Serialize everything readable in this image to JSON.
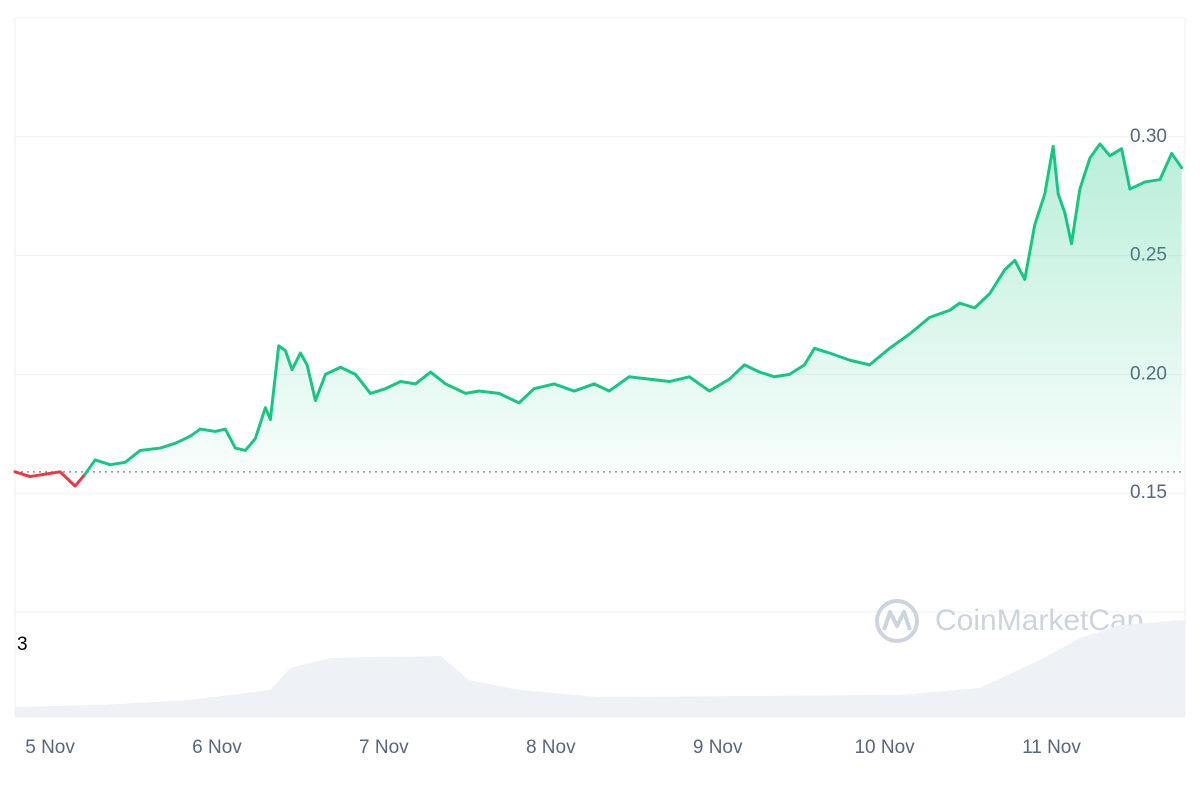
{
  "chart_data": {
    "type": "line",
    "x": [
      4.79,
      4.88,
      4.97,
      5.06,
      5.15,
      5.21,
      5.27,
      5.36,
      5.45,
      5.54,
      5.66,
      5.75,
      5.84,
      5.9,
      5.99,
      6.05,
      6.11,
      6.17,
      6.23,
      6.29,
      6.32,
      6.37,
      6.41,
      6.45,
      6.5,
      6.54,
      6.59,
      6.65,
      6.74,
      6.83,
      6.92,
      7.01,
      7.1,
      7.19,
      7.28,
      7.37,
      7.49,
      7.57,
      7.69,
      7.81,
      7.9,
      8.02,
      8.14,
      8.26,
      8.35,
      8.47,
      8.59,
      8.71,
      8.83,
      8.95,
      9.07,
      9.16,
      9.25,
      9.34,
      9.43,
      9.52,
      9.58,
      9.67,
      9.79,
      9.91,
      10.03,
      10.15,
      10.27,
      10.39,
      10.45,
      10.54,
      10.63,
      10.72,
      10.78,
      10.84,
      10.9,
      10.96,
      11.01,
      11.04,
      11.08,
      11.12,
      11.17,
      11.23,
      11.29,
      11.35,
      11.42,
      11.47,
      11.56,
      11.65,
      11.72,
      11.78
    ],
    "series": [
      {
        "color": "#16c784",
        "down_color": "#ea3943",
        "values": [
          0.159,
          0.157,
          0.158,
          0.159,
          0.153,
          0.158,
          0.164,
          0.162,
          0.163,
          0.168,
          0.169,
          0.171,
          0.174,
          0.177,
          0.176,
          0.177,
          0.169,
          0.168,
          0.173,
          0.186,
          0.181,
          0.212,
          0.21,
          0.202,
          0.209,
          0.204,
          0.189,
          0.2,
          0.203,
          0.2,
          0.192,
          0.194,
          0.197,
          0.196,
          0.201,
          0.196,
          0.192,
          0.193,
          0.192,
          0.188,
          0.194,
          0.196,
          0.193,
          0.196,
          0.193,
          0.199,
          0.198,
          0.197,
          0.199,
          0.193,
          0.198,
          0.204,
          0.201,
          0.199,
          0.2,
          0.204,
          0.211,
          0.209,
          0.206,
          0.204,
          0.211,
          0.217,
          0.224,
          0.227,
          0.23,
          0.228,
          0.234,
          0.244,
          0.248,
          0.24,
          0.263,
          0.276,
          0.296,
          0.276,
          0.268,
          0.255,
          0.278,
          0.291,
          0.297,
          0.292,
          0.295,
          0.278,
          0.281,
          0.282,
          0.293,
          0.287
        ]
      }
    ],
    "baseline": 0.159,
    "xlim": [
      4.79,
      11.8
    ],
    "xticks": [
      {
        "value": 5,
        "label": "5 Nov"
      },
      {
        "value": 6,
        "label": "6 Nov"
      },
      {
        "value": 7,
        "label": "7 Nov"
      },
      {
        "value": 8,
        "label": "8 Nov"
      },
      {
        "value": 9,
        "label": "9 Nov"
      },
      {
        "value": 10,
        "label": "10 Nov"
      },
      {
        "value": 11,
        "label": "11 Nov"
      }
    ],
    "ylim": [
      0.1,
      0.35
    ],
    "yticks": [
      0.15,
      {
        "value": 0.2,
        "label": "0.20"
      },
      0.25,
      {
        "value": 0.3,
        "label": "0.30"
      }
    ],
    "grid": true,
    "volume": {
      "x": [
        4.79,
        5.3,
        5.84,
        6.32,
        6.44,
        6.68,
        7.34,
        7.51,
        7.81,
        8.29,
        10.09,
        10.57,
        10.93,
        11.17,
        11.41,
        11.8
      ],
      "values": [
        0.42,
        0.5,
        0.71,
        1.13,
        2.04,
        2.46,
        2.54,
        1.54,
        1.13,
        0.83,
        0.92,
        1.21,
        2.38,
        3.29,
        3.83,
        4.04
      ],
      "ylim": [
        0,
        4.375
      ],
      "yticks": [
        3
      ],
      "color": "#eef1f5"
    },
    "watermark": "CoinMarketCap"
  }
}
